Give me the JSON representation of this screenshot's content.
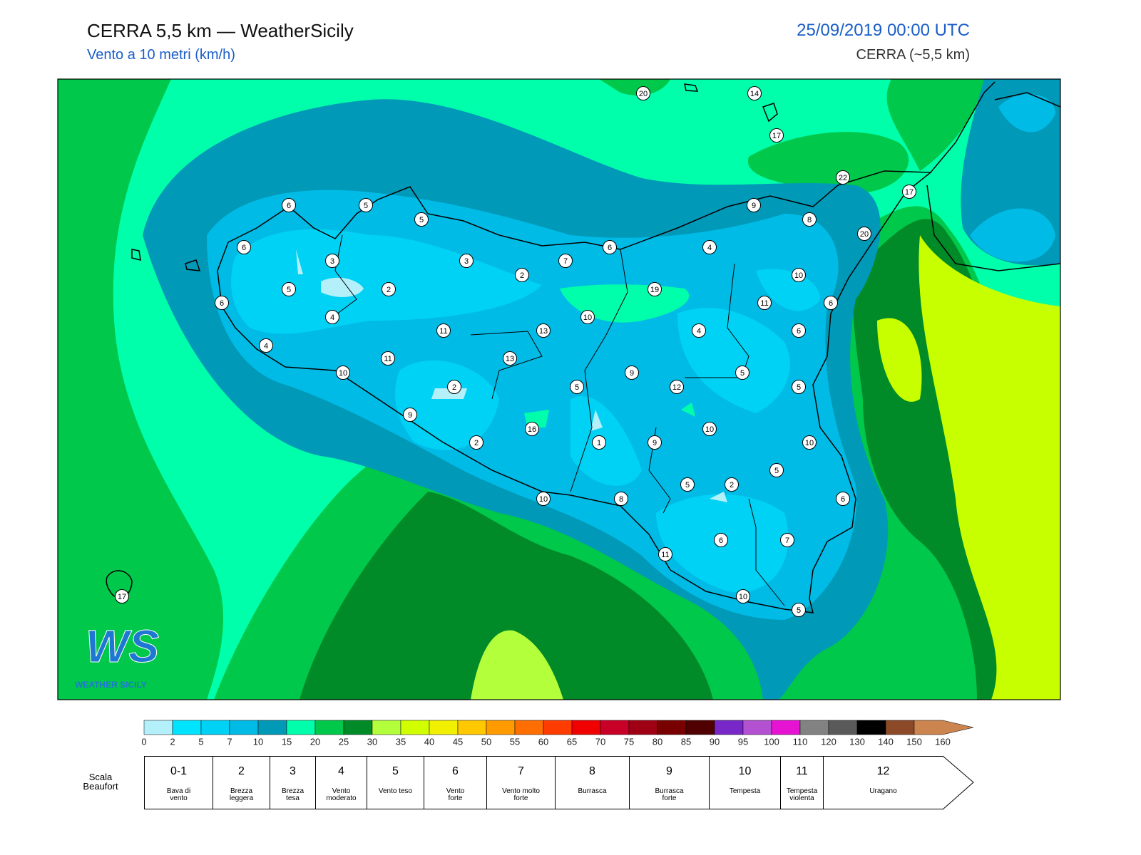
{
  "header": {
    "title": "CERRA 5,5 km — WeatherSicily",
    "subtitle": "Vento a 10 metri (km/h)",
    "date": "25/09/2019 00:00 UTC",
    "model": "CERRA (~5,5 km)"
  },
  "stations": {
    "values": [
      20,
      14,
      17,
      22,
      17,
      20,
      6,
      5,
      5,
      9,
      8,
      6,
      3,
      3,
      7,
      6,
      4,
      2,
      10,
      5,
      2,
      19,
      6,
      4,
      10,
      11,
      6,
      11,
      13,
      4,
      6,
      4,
      11,
      13,
      10,
      9,
      5,
      2,
      5,
      12,
      5,
      9,
      16,
      10,
      2,
      1,
      9,
      10,
      5,
      5,
      2,
      10,
      8,
      6,
      6,
      7,
      11,
      17,
      10,
      5
    ]
  },
  "logo": {
    "mark": "WS",
    "text": "WEATHER SICILY"
  },
  "colorbar": {
    "ticks": [
      0,
      2,
      5,
      7,
      10,
      15,
      20,
      25,
      30,
      35,
      40,
      45,
      50,
      55,
      60,
      65,
      70,
      75,
      80,
      85,
      90,
      95,
      100,
      110,
      120,
      130,
      140,
      150,
      160
    ],
    "colors": [
      "#b4f0fa",
      "#00e4ff",
      "#00d2f5",
      "#00bbe6",
      "#0099b8",
      "#00ffaa",
      "#00c84a",
      "#008a28",
      "#b4ff3c",
      "#d2ff00",
      "#f0f000",
      "#ffc800",
      "#ff9b00",
      "#ff6e00",
      "#ff3c00",
      "#f00000",
      "#c80028",
      "#a00014",
      "#780000",
      "#500000",
      "#7828c8",
      "#b450d2",
      "#e614d2",
      "#828282",
      "#5a5a5a",
      "#000000",
      "#8c4a28",
      "#cd8550"
    ]
  },
  "beaufort": {
    "title": "Scala Beaufort",
    "levels": [
      {
        "force": "0-1",
        "label": "Bava di vento"
      },
      {
        "force": "2",
        "label": "Brezza leggera"
      },
      {
        "force": "3",
        "label": "Brezza tesa"
      },
      {
        "force": "4",
        "label": "Vento moderato"
      },
      {
        "force": "5",
        "label": "Vento teso"
      },
      {
        "force": "6",
        "label": "Vento forte"
      },
      {
        "force": "7",
        "label": "Vento molto forte"
      },
      {
        "force": "8",
        "label": "Burrasca"
      },
      {
        "force": "9",
        "label": "Burrasca forte"
      },
      {
        "force": "10",
        "label": "Tempesta"
      },
      {
        "force": "11",
        "label": "Tempesta violenta"
      },
      {
        "force": "12",
        "label": "Uragano"
      }
    ]
  }
}
